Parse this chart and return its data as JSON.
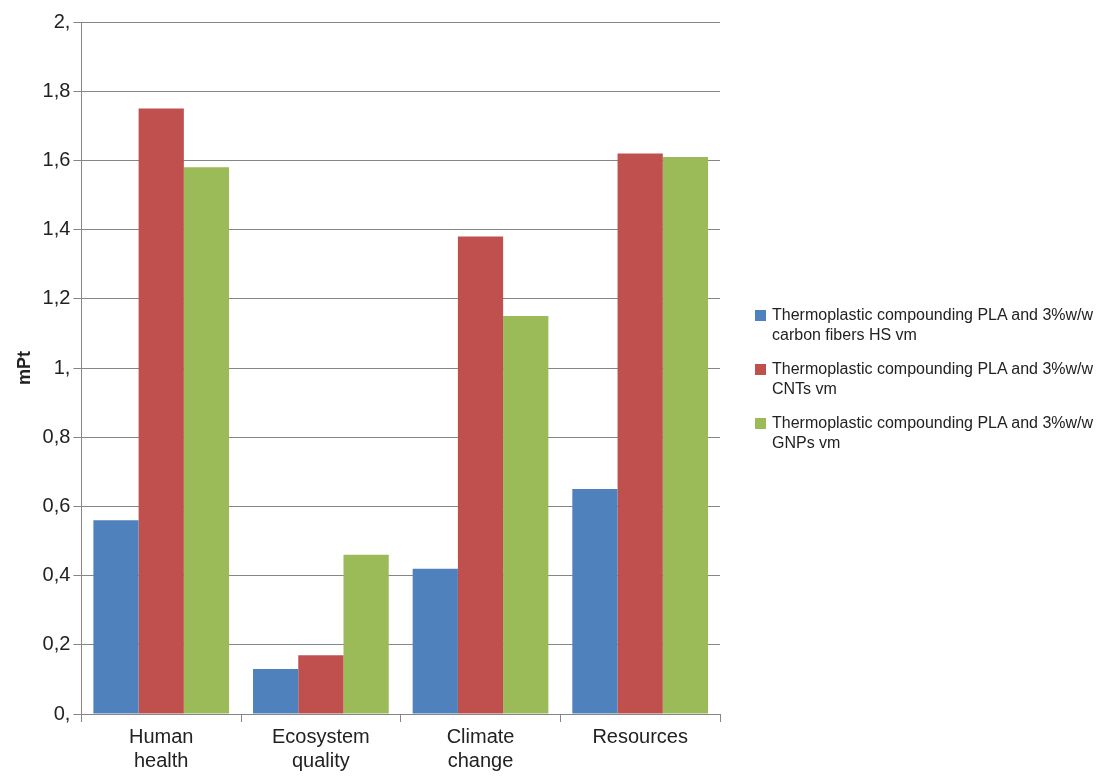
{
  "chart_data": {
    "type": "bar",
    "ylabel": "mPt",
    "categories": [
      "Human health",
      "Ecosystem quality",
      "Climate change",
      "Resources"
    ],
    "series": [
      {
        "name": "Thermoplastic compounding PLA and 3%w/w carbon fibers HS vm",
        "color": "#4f81bd",
        "values": [
          0.56,
          0.13,
          0.42,
          0.65
        ]
      },
      {
        "name": "Thermoplastic compounding PLA and 3%w/w CNTs vm",
        "color": "#c0504d",
        "values": [
          1.75,
          0.17,
          1.38,
          1.62
        ]
      },
      {
        "name": "Thermoplastic compounding PLA and 3%w/w GNPs vm",
        "color": "#9bbb59",
        "values": [
          1.58,
          0.46,
          1.15,
          1.61
        ]
      }
    ],
    "ylim": [
      0,
      2
    ],
    "yticks": [
      {
        "value": 0,
        "label": "0,"
      },
      {
        "value": 0.2,
        "label": "0,2"
      },
      {
        "value": 0.4,
        "label": "0,4"
      },
      {
        "value": 0.6,
        "label": "0,6"
      },
      {
        "value": 0.8,
        "label": "0,8"
      },
      {
        "value": 1,
        "label": "1,"
      },
      {
        "value": 1.2,
        "label": "1,2"
      },
      {
        "value": 1.4,
        "label": "1,4"
      },
      {
        "value": 1.6,
        "label": "1,6"
      },
      {
        "value": 1.8,
        "label": "1,8"
      },
      {
        "value": 2,
        "label": "2,"
      }
    ],
    "grid": "y",
    "legend": "right"
  }
}
